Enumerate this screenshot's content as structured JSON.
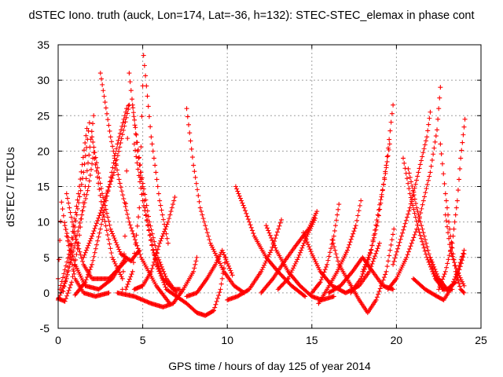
{
  "chart_data": {
    "type": "scatter",
    "title": "dSTEC Iono. truth (auck, Lon=174, Lat=-36, h=132): STEC-STEC_elemax in phase cont",
    "xlabel": "GPS time / hours of day 125 of year 2014",
    "ylabel": "dSTEC  / TECUs",
    "xlim": [
      0,
      25
    ],
    "ylim": [
      -5,
      35
    ],
    "xticks": [
      0,
      5,
      10,
      15,
      20,
      25
    ],
    "yticks": [
      -5,
      0,
      5,
      10,
      15,
      20,
      25,
      30,
      35
    ],
    "grid": true,
    "marker": "plus",
    "color": "#ff0000",
    "series": [
      {
        "values": [
          [
            0.0,
            2.0
          ],
          [
            0.2,
            12.8
          ],
          [
            0.5,
            8.0
          ],
          [
            1.0,
            2.0
          ],
          [
            1.5,
            0.0
          ],
          [
            2.2,
            -0.5
          ],
          [
            3.0,
            0.0
          ]
        ]
      },
      {
        "values": [
          [
            0.0,
            -0.8
          ],
          [
            0.4,
            -1.2
          ],
          [
            0.8,
            1.5
          ],
          [
            1.2,
            7.0
          ],
          [
            1.6,
            15.0
          ],
          [
            2.1,
            25.0
          ]
        ]
      },
      {
        "values": [
          [
            0.1,
            0.5
          ],
          [
            0.7,
            6.0
          ],
          [
            1.2,
            14.0
          ],
          [
            1.7,
            23.2
          ]
        ]
      },
      {
        "values": [
          [
            0.3,
            0.2
          ],
          [
            0.7,
            5.0
          ],
          [
            1.1,
            11.0
          ],
          [
            1.5,
            17.0
          ],
          [
            1.85,
            24.0
          ]
        ]
      },
      {
        "values": [
          [
            0.0,
            -1.0
          ],
          [
            0.5,
            2.0
          ],
          [
            1.0,
            7.0
          ],
          [
            1.8,
            15.0
          ],
          [
            2.1,
            19.8
          ],
          [
            2.6,
            12.0
          ],
          [
            3.2,
            5.0
          ],
          [
            3.8,
            2.0
          ]
        ]
      },
      {
        "values": [
          [
            0.4,
            9.5
          ],
          [
            1.0,
            4.0
          ],
          [
            1.6,
            1.0
          ],
          [
            2.4,
            0.5
          ],
          [
            3.2,
            2.0
          ],
          [
            4.0,
            5.0
          ]
        ]
      },
      {
        "values": [
          [
            0.5,
            14.0
          ],
          [
            1.0,
            8.0
          ],
          [
            1.5,
            4.0
          ],
          [
            2.0,
            2.0
          ],
          [
            3.0,
            2.0
          ],
          [
            4.0,
            4.5
          ]
        ]
      },
      {
        "values": [
          [
            1.0,
            -0.3
          ],
          [
            1.6,
            1.5
          ],
          [
            2.0,
            4.0
          ],
          [
            2.5,
            9.0
          ],
          [
            3.0,
            15.0
          ],
          [
            3.5,
            21.0
          ],
          [
            4.05,
            26.0
          ]
        ]
      },
      {
        "values": [
          [
            1.5,
            5.0
          ],
          [
            2.0,
            8.0
          ],
          [
            2.6,
            12.0
          ],
          [
            3.3,
            17.0
          ],
          [
            4.2,
            26.5
          ]
        ]
      },
      {
        "values": [
          [
            2.0,
            22.0
          ],
          [
            2.6,
            14.0
          ],
          [
            3.1,
            9.0
          ],
          [
            3.7,
            5.5
          ],
          [
            4.3,
            4.5
          ],
          [
            4.8,
            6.0
          ]
        ]
      },
      {
        "values": [
          [
            2.5,
            31.0
          ],
          [
            3.1,
            22.0
          ],
          [
            3.6,
            16.0
          ],
          [
            4.2,
            10.0
          ],
          [
            4.9,
            5.0
          ],
          [
            5.8,
            1.0
          ],
          [
            6.6,
            -1.5
          ]
        ]
      },
      {
        "values": [
          [
            3.8,
            0.5
          ],
          [
            3.95,
            8.0
          ],
          [
            4.2,
            31.0
          ],
          [
            4.7,
            20.0
          ],
          [
            5.2,
            11.0
          ],
          [
            5.8,
            4.0
          ],
          [
            6.4,
            0.5
          ],
          [
            7.0,
            -0.5
          ]
        ]
      },
      {
        "values": [
          [
            4.4,
            26.5
          ],
          [
            4.9,
            17.0
          ],
          [
            5.4,
            10.0
          ],
          [
            5.9,
            5.0
          ],
          [
            6.4,
            2.0
          ],
          [
            7.0,
            0.0
          ]
        ]
      },
      {
        "values": [
          [
            4.5,
            21.0
          ],
          [
            5.0,
            13.0
          ],
          [
            5.6,
            6.0
          ],
          [
            6.2,
            2.0
          ],
          [
            6.8,
            0.5
          ],
          [
            7.2,
            0.5
          ]
        ]
      },
      {
        "values": [
          [
            4.0,
            0.5
          ],
          [
            4.4,
            3.0
          ],
          [
            4.8,
            12.0
          ],
          [
            5.05,
            33.5
          ],
          [
            5.5,
            22.0
          ],
          [
            6.0,
            13.0
          ],
          [
            6.5,
            7.0
          ]
        ]
      },
      {
        "values": [
          [
            4.5,
            0.5
          ],
          [
            5.0,
            1.0
          ],
          [
            5.5,
            3.0
          ],
          [
            6.0,
            7.0
          ],
          [
            6.5,
            10.0
          ],
          [
            6.9,
            13.5
          ]
        ]
      },
      {
        "values": [
          [
            3.5,
            0.0
          ],
          [
            4.5,
            -0.5
          ],
          [
            5.5,
            -1.5
          ],
          [
            6.2,
            -2.0
          ],
          [
            6.8,
            -1.5
          ],
          [
            7.4,
            0.5
          ],
          [
            8.0,
            3.0
          ],
          [
            8.2,
            5.0
          ]
        ]
      },
      {
        "values": [
          [
            7.6,
            26.0
          ],
          [
            8.0,
            18.0
          ],
          [
            8.4,
            12.0
          ],
          [
            9.0,
            7.0
          ],
          [
            9.8,
            3.0
          ],
          [
            10.4,
            1.0
          ],
          [
            11.0,
            0.0
          ]
        ]
      },
      {
        "values": [
          [
            7.0,
            -0.5
          ],
          [
            7.6,
            -1.5
          ],
          [
            8.2,
            -2.8
          ],
          [
            8.7,
            -3.2
          ],
          [
            9.2,
            -2.5
          ],
          [
            9.6,
            0.5
          ],
          [
            9.9,
            5.0
          ]
        ]
      },
      {
        "values": [
          [
            7.6,
            -0.5
          ],
          [
            8.2,
            0.0
          ],
          [
            8.8,
            2.0
          ],
          [
            9.3,
            4.0
          ],
          [
            9.7,
            6.0
          ],
          [
            10.3,
            2.5
          ]
        ]
      },
      {
        "values": [
          [
            10.5,
            15.0
          ],
          [
            11.0,
            12.0
          ],
          [
            11.6,
            8.0
          ],
          [
            12.3,
            5.0
          ],
          [
            13.0,
            3.0
          ],
          [
            13.8,
            1.0
          ],
          [
            14.6,
            -0.5
          ]
        ]
      },
      {
        "values": [
          [
            10.0,
            -1.0
          ],
          [
            10.6,
            -0.5
          ],
          [
            11.3,
            0.5
          ],
          [
            12.0,
            3.0
          ],
          [
            12.6,
            6.0
          ],
          [
            13.2,
            10.3
          ]
        ]
      },
      {
        "values": [
          [
            12.3,
            9.5
          ],
          [
            12.9,
            6.0
          ],
          [
            13.6,
            3.0
          ],
          [
            14.3,
            1.0
          ],
          [
            15.0,
            -0.5
          ],
          [
            15.6,
            -1.0
          ],
          [
            16.3,
            -0.5
          ]
        ]
      },
      {
        "values": [
          [
            12.0,
            0.0
          ],
          [
            12.7,
            2.0
          ],
          [
            13.4,
            4.5
          ],
          [
            14.0,
            6.5
          ],
          [
            14.8,
            9.0
          ],
          [
            15.3,
            11.5
          ]
        ]
      },
      {
        "values": [
          [
            13.0,
            0.5
          ],
          [
            13.6,
            2.0
          ],
          [
            14.2,
            5.0
          ],
          [
            14.7,
            8.0
          ],
          [
            15.2,
            10.5
          ]
        ]
      },
      {
        "values": [
          [
            14.5,
            8.5
          ],
          [
            15.0,
            5.5
          ],
          [
            15.5,
            3.0
          ],
          [
            16.2,
            1.0
          ],
          [
            17.0,
            0.0
          ],
          [
            17.8,
            1.0
          ],
          [
            18.4,
            3.0
          ],
          [
            19.0,
            7.0
          ]
        ]
      },
      {
        "values": [
          [
            15.0,
            0.0
          ],
          [
            15.5,
            1.5
          ],
          [
            15.9,
            4.0
          ],
          [
            16.3,
            8.0
          ],
          [
            16.6,
            12.5
          ]
        ]
      },
      {
        "values": [
          [
            15.4,
            -1.5
          ],
          [
            15.9,
            0.5
          ],
          [
            16.5,
            3.0
          ],
          [
            17.1,
            6.0
          ],
          [
            17.6,
            9.5
          ],
          [
            17.9,
            13.0
          ]
        ]
      },
      {
        "values": [
          [
            16.0,
            0.0
          ],
          [
            16.7,
            1.0
          ],
          [
            17.4,
            3.0
          ],
          [
            18.0,
            5.0
          ],
          [
            18.6,
            3.0
          ],
          [
            19.2,
            1.0
          ],
          [
            19.8,
            0.5
          ]
        ]
      },
      {
        "values": [
          [
            16.2,
            7.5
          ],
          [
            16.6,
            4.0
          ],
          [
            17.2,
            1.5
          ],
          [
            17.8,
            -1.0
          ],
          [
            18.3,
            -2.8
          ],
          [
            18.8,
            -1.0
          ],
          [
            19.4,
            3.0
          ],
          [
            19.85,
            9.0
          ]
        ]
      },
      {
        "values": [
          [
            17.3,
            0.0
          ],
          [
            17.9,
            2.0
          ],
          [
            18.4,
            5.0
          ],
          [
            18.9,
            10.0
          ],
          [
            19.4,
            18.0
          ],
          [
            19.8,
            26.5
          ]
        ]
      },
      {
        "values": [
          [
            18.0,
            3.0
          ],
          [
            18.5,
            6.0
          ],
          [
            18.9,
            11.0
          ],
          [
            19.3,
            16.0
          ],
          [
            19.6,
            21.0
          ]
        ]
      },
      {
        "values": [
          [
            19.5,
            0.5
          ],
          [
            20.0,
            2.0
          ],
          [
            20.6,
            5.0
          ],
          [
            21.2,
            9.0
          ],
          [
            21.6,
            13.0
          ],
          [
            22.0,
            17.0
          ],
          [
            22.4,
            23.0
          ],
          [
            22.6,
            29.0
          ]
        ]
      },
      {
        "values": [
          [
            19.8,
            4.0
          ],
          [
            20.3,
            8.0
          ],
          [
            20.8,
            12.0
          ],
          [
            21.3,
            17.0
          ],
          [
            21.8,
            22.0
          ],
          [
            22.0,
            25.5
          ]
        ]
      },
      {
        "values": [
          [
            20.4,
            19.0
          ],
          [
            20.8,
            14.0
          ],
          [
            21.3,
            9.0
          ],
          [
            21.8,
            5.0
          ],
          [
            22.3,
            2.0
          ],
          [
            22.8,
            0.5
          ]
        ]
      },
      {
        "values": [
          [
            20.7,
            17.5
          ],
          [
            21.2,
            12.0
          ],
          [
            21.7,
            7.5
          ],
          [
            22.2,
            3.0
          ],
          [
            22.7,
            0.5
          ],
          [
            23.3,
            0.5
          ]
        ]
      },
      {
        "values": [
          [
            21.0,
            2.0
          ],
          [
            21.7,
            0.5
          ],
          [
            22.4,
            -0.5
          ],
          [
            22.8,
            -1.0
          ],
          [
            23.2,
            0.5
          ],
          [
            23.6,
            3.0
          ],
          [
            24.0,
            6.0
          ]
        ]
      },
      {
        "values": [
          [
            22.6,
            21.0
          ],
          [
            22.9,
            14.0
          ],
          [
            23.2,
            8.0
          ],
          [
            23.5,
            3.0
          ],
          [
            23.8,
            0.5
          ],
          [
            24.0,
            0.0
          ]
        ]
      },
      {
        "values": [
          [
            22.9,
            11.0
          ],
          [
            23.2,
            6.0
          ],
          [
            23.6,
            3.0
          ],
          [
            24.0,
            1.0
          ]
        ]
      },
      {
        "values": [
          [
            22.5,
            0.5
          ],
          [
            22.9,
            3.0
          ],
          [
            23.3,
            7.0
          ],
          [
            23.6,
            13.0
          ],
          [
            23.8,
            19.0
          ],
          [
            24.05,
            24.5
          ]
        ]
      },
      {
        "values": [
          [
            22.0,
            5.0
          ],
          [
            22.5,
            2.0
          ],
          [
            23.0,
            0.5
          ],
          [
            23.5,
            1.5
          ],
          [
            24.0,
            5.5
          ]
        ]
      }
    ]
  }
}
